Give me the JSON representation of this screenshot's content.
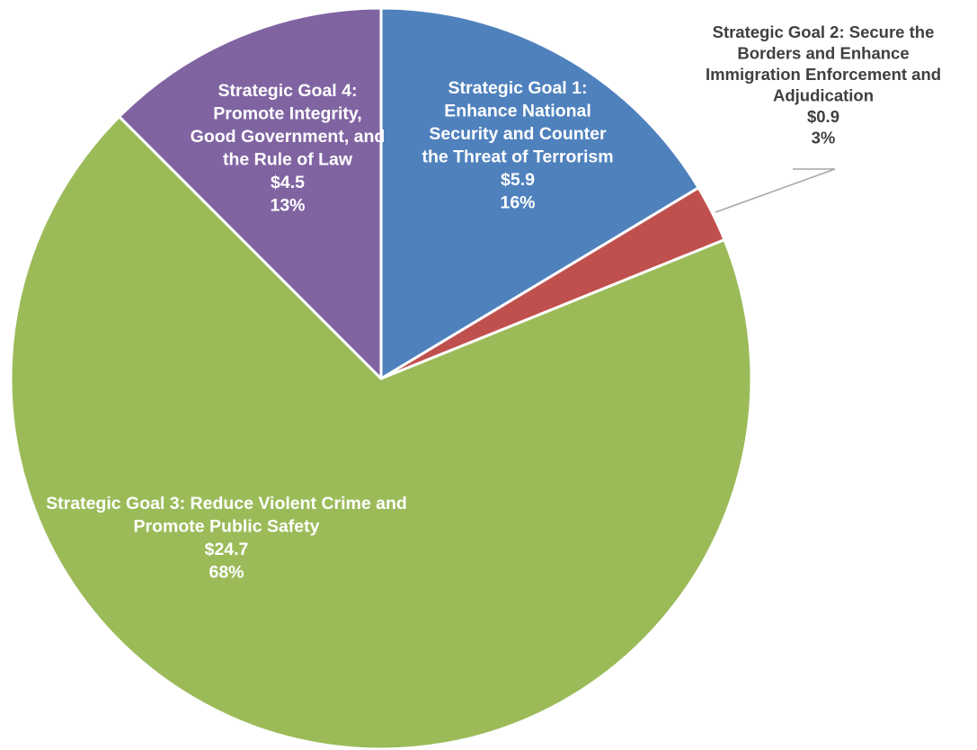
{
  "chart_data": {
    "type": "pie",
    "title": "",
    "start_angle_deg": 0,
    "direction": "clockwise",
    "slices": [
      {
        "name": "Strategic Goal 1: Enhance National Security and Counter the Threat of Terrorism",
        "label_lines": [
          "Strategic Goal 1:",
          "Enhance National",
          "Security and Counter",
          "the Threat of Terrorism"
        ],
        "value": 5.9,
        "value_label": "$5.9",
        "percent_label": "16%",
        "color": "#4F81BD",
        "label_position": "inside"
      },
      {
        "name": "Strategic Goal 2: Secure the Borders and Enhance Immigration Enforcement and Adjudication",
        "label_lines": [
          "Strategic Goal 2: Secure the",
          "Borders and Enhance",
          "Immigration Enforcement and",
          "Adjudication"
        ],
        "value": 0.9,
        "value_label": "$0.9",
        "percent_label": "3%",
        "color": "#C0504D",
        "label_position": "outside"
      },
      {
        "name": "Strategic Goal 3: Reduce Violent Crime and Promote Public Safety",
        "label_lines": [
          "Strategic Goal 3: Reduce Violent Crime and",
          "Promote Public Safety"
        ],
        "value": 24.7,
        "value_label": "$24.7",
        "percent_label": "68%",
        "color": "#9BBB59",
        "label_position": "inside"
      },
      {
        "name": "Strategic Goal 4: Promote Integrity, Good Government, and the Rule of Law",
        "label_lines": [
          "Strategic Goal 4:",
          "Promote Integrity,",
          "Good Government, and",
          "the Rule of Law"
        ],
        "value": 4.5,
        "value_label": "$4.5",
        "percent_label": "13%",
        "color": "#8064A2",
        "label_position": "inside"
      }
    ]
  }
}
